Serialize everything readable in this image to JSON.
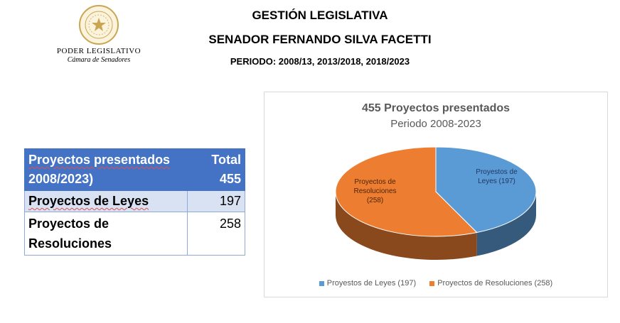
{
  "logo": {
    "line1": "PODER LEGISLATIVO",
    "line2": "Cámara de Senadores"
  },
  "header": {
    "title": "GESTIÓN LEGISLATIVA",
    "senator": "SENADOR FERNANDO SILVA FACETTI",
    "period": "PERIODO: 2008/13, 2013/2018, 2018/2023"
  },
  "table": {
    "header_label_line1": "Proyectos presentados",
    "header_label_line2": "2008/2023)",
    "header_total_label": "Total",
    "header_total_value": "455",
    "rows": [
      {
        "label": "Proyectos de Leyes",
        "value": "197"
      },
      {
        "label_line1": "Proyectos de",
        "label_line2": "Resoluciones",
        "value": "258"
      }
    ]
  },
  "chart_data": {
    "type": "pie",
    "title": "455 Proyectos presentados",
    "subtitle": "Periodo 2008-2023",
    "slices": [
      {
        "label": "Proyestos de Leyes (197)",
        "value": 197,
        "color": "#5b9bd5"
      },
      {
        "label": "Proyectos de Resoluciones (258)",
        "value": 258,
        "color": "#ed7d31"
      }
    ],
    "data_labels": [
      {
        "line1": "Proyestos de",
        "line2": "Leyes (197)"
      },
      {
        "line1": "Proyectos de",
        "line2": "Resoluciones",
        "line3": "(258)"
      }
    ],
    "legend_position": "bottom",
    "style": "3d"
  }
}
